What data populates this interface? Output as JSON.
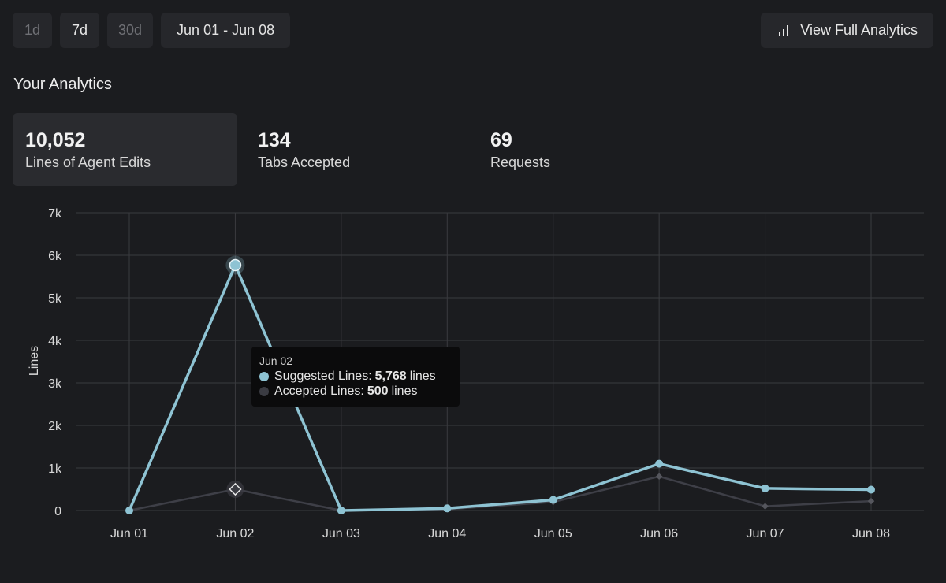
{
  "toolbar": {
    "ranges": [
      "1d",
      "7d",
      "30d"
    ],
    "active_range": "7d",
    "date_range": "Jun 01 - Jun 08",
    "full_analytics_label": "View Full Analytics"
  },
  "page_title": "Your Analytics",
  "stats": [
    {
      "value": "10,052",
      "label": "Lines of Agent Edits"
    },
    {
      "value": "134",
      "label": "Tabs Accepted"
    },
    {
      "value": "69",
      "label": "Requests"
    }
  ],
  "tooltip": {
    "date": "Jun 02",
    "suggested_label": "Suggested Lines:",
    "suggested_value": "5,768",
    "accepted_label": "Accepted Lines:",
    "accepted_value": "500",
    "unit": "lines"
  },
  "colors": {
    "suggested": "#8ec3d3",
    "accepted": "#3a3b42"
  },
  "chart_data": {
    "type": "line",
    "title": "",
    "xlabel": "",
    "ylabel": "Lines",
    "categories": [
      "Jun 01",
      "Jun 02",
      "Jun 03",
      "Jun 04",
      "Jun 05",
      "Jun 06",
      "Jun 07",
      "Jun 08"
    ],
    "series": [
      {
        "name": "Suggested Lines",
        "values": [
          0,
          5768,
          0,
          50,
          250,
          1100,
          520,
          490
        ]
      },
      {
        "name": "Accepted Lines",
        "values": [
          0,
          500,
          0,
          30,
          200,
          800,
          100,
          220
        ]
      }
    ],
    "yticks": [
      "0",
      "1k",
      "2k",
      "3k",
      "4k",
      "5k",
      "6k",
      "7k"
    ],
    "ylim": [
      0,
      7000
    ],
    "grid": true,
    "legend": "none"
  }
}
